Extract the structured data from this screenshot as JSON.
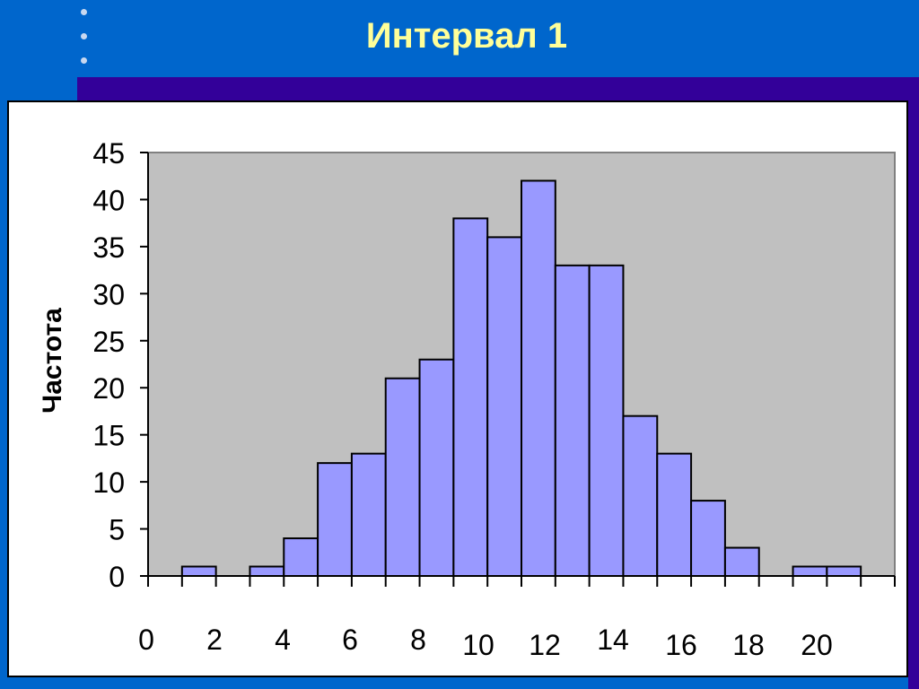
{
  "slide": {
    "title": "Интервал 1",
    "background_color": "#0066cc",
    "title_color": "#ffff99",
    "accent_band_color": "#330099"
  },
  "chart_data": {
    "type": "bar",
    "title": "",
    "xlabel": "",
    "ylabel": "Частота",
    "ylim": [
      0,
      45
    ],
    "xlim": [
      0,
      22
    ],
    "y_ticks": [
      0,
      5,
      10,
      15,
      20,
      25,
      30,
      35,
      40,
      45
    ],
    "x_tick_labels": [
      "0",
      "2",
      "4",
      "6",
      "8",
      "10",
      "12",
      "14",
      "16",
      "18",
      "20"
    ],
    "bin_width": 1,
    "bins_start": [
      0,
      1,
      2,
      3,
      4,
      5,
      6,
      7,
      8,
      9,
      10,
      11,
      12,
      13,
      14,
      15,
      16,
      17,
      18,
      19,
      20,
      21
    ],
    "values": [
      0,
      1,
      0,
      1,
      4,
      12,
      13,
      21,
      23,
      38,
      36,
      42,
      33,
      33,
      17,
      13,
      8,
      3,
      0,
      1,
      1,
      0
    ],
    "bar_color": "#9999ff",
    "plot_background": "#c0c0c0",
    "grid": false,
    "legend": "none"
  }
}
